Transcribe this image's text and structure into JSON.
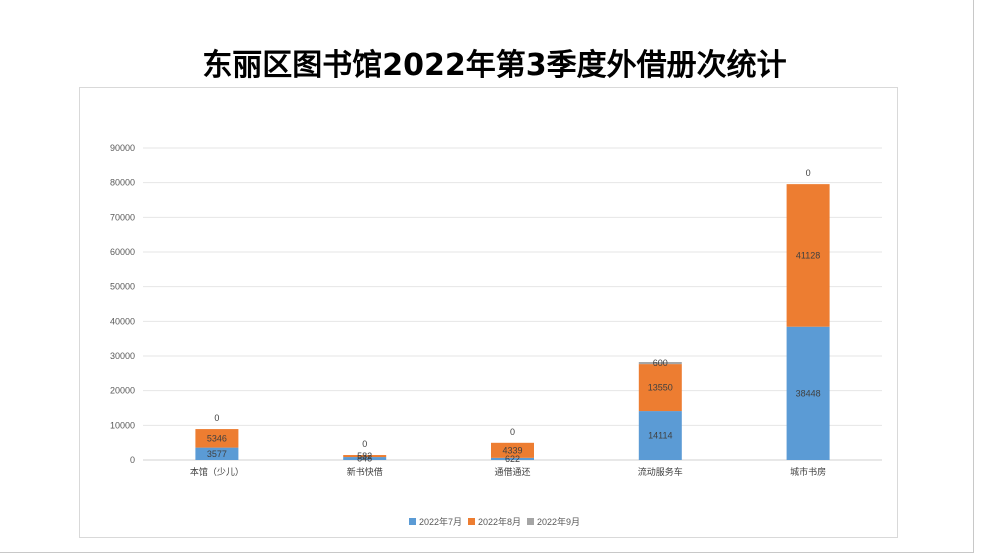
{
  "colors": {
    "series": [
      "#5b9bd5",
      "#ed7d31",
      "#a5a5a5"
    ],
    "grid": "#e6e6e6",
    "text": "#595959"
  },
  "chart_data": {
    "type": "bar",
    "stacked": true,
    "title": "东丽区图书馆2022年第3季度外借册次统计",
    "xlabel": "",
    "ylabel": "",
    "ylim": [
      0,
      90000
    ],
    "yticks": [
      0,
      10000,
      20000,
      30000,
      40000,
      50000,
      60000,
      70000,
      80000,
      90000
    ],
    "grid": true,
    "legend": "bottom",
    "categories": [
      "本馆（少儿）",
      "新书快借",
      "通借通还",
      "流动服务车",
      "城市书房"
    ],
    "series": [
      {
        "name": "2022年7月",
        "values": [
          3577,
          848,
          622,
          14114,
          38448
        ]
      },
      {
        "name": "2022年8月",
        "values": [
          5346,
          582,
          4339,
          13550,
          41128
        ]
      },
      {
        "name": "2022年9月",
        "values": [
          0,
          0,
          0,
          600,
          0
        ]
      }
    ]
  }
}
